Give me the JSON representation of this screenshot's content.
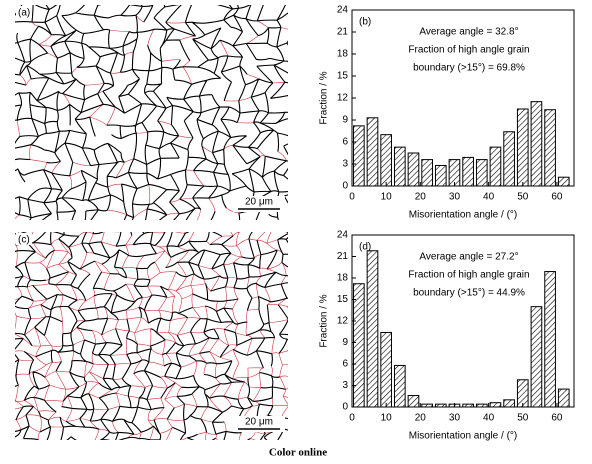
{
  "chart_data": [
    {
      "type": "histogram",
      "panel_label": "(b)",
      "annotations": [
        "Average angle = 32.8°",
        "Fraction of high angle grain",
        "boundary (>15°) = 69.8%"
      ],
      "xlabel": "Misorientation angle / (°)",
      "ylabel": "Fraction / %",
      "bins": [
        0,
        4,
        8,
        12,
        16,
        20,
        24,
        28,
        32,
        36,
        40,
        44,
        48,
        52,
        56,
        60,
        64
      ],
      "values": [
        8.2,
        9.3,
        7.0,
        5.3,
        4.5,
        3.6,
        2.8,
        3.6,
        3.9,
        3.6,
        5.3,
        7.4,
        10.5,
        11.5,
        10.4,
        1.2
      ],
      "xlim": [
        0,
        65
      ],
      "ylim": [
        0,
        24
      ],
      "xticks": [
        0,
        10,
        20,
        30,
        40,
        50,
        60
      ],
      "yticks": [
        0,
        3,
        6,
        9,
        12,
        15,
        18,
        21,
        24
      ],
      "color": "#000000"
    },
    {
      "type": "histogram",
      "panel_label": "(d)",
      "annotations": [
        "Average angle = 27.2°",
        "Fraction of high angle grain",
        "boundary (>15°) = 44.9%"
      ],
      "xlabel": "Misorientation angle / (°)",
      "ylabel": "Fraction / %",
      "bins": [
        0,
        4,
        8,
        12,
        16,
        20,
        24,
        28,
        32,
        36,
        40,
        44,
        48,
        52,
        56,
        60,
        64
      ],
      "values": [
        17.2,
        21.8,
        10.4,
        5.8,
        1.6,
        0.4,
        0.4,
        0.4,
        0.4,
        0.4,
        0.6,
        1.0,
        3.8,
        14.0,
        18.9,
        2.5
      ],
      "xlim": [
        0,
        65
      ],
      "ylim": [
        0,
        24
      ],
      "xticks": [
        0,
        10,
        20,
        30,
        40,
        50,
        60
      ],
      "yticks": [
        0,
        3,
        6,
        9,
        12,
        15,
        18,
        21,
        24
      ],
      "color": "#000000"
    }
  ],
  "images": [
    {
      "label": "(a)",
      "scale_bar": "20 μm"
    },
    {
      "label": "(c)",
      "scale_bar": "20 μm"
    }
  ],
  "caption": "Color online"
}
